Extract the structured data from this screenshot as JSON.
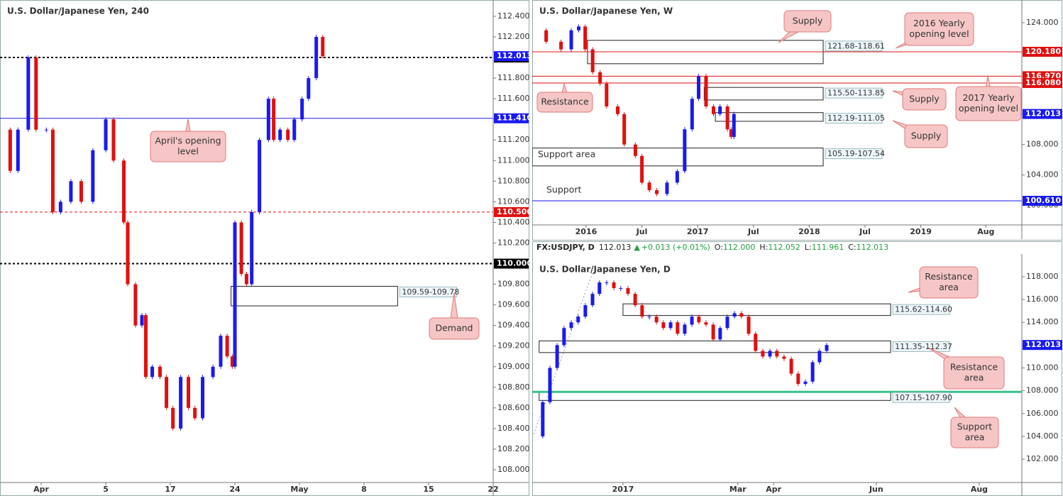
{
  "chart_data": [
    {
      "type": "candlestick",
      "title": "U.S. Dollar/Japanese Yen, 240",
      "x": [
        -2.9,
        -2.4,
        -1.8,
        -1.0,
        -0.4,
        0.4,
        0.9,
        1.5,
        2.3,
        3.1,
        4.0,
        5.0,
        5.6,
        6.4,
        6.7,
        7.3,
        7.8,
        8.1,
        8.6,
        9.2,
        9.7,
        10.2,
        10.8,
        11.4,
        11.9,
        12.5,
        13.3,
        13.9,
        14.4,
        14.8,
        15.0,
        15.5,
        15.9,
        16.3,
        16.9,
        17.6,
        18.0,
        18.5,
        19.1,
        19.6,
        20.2,
        20.7,
        21.3,
        21.8
      ],
      "values": [
        111.3,
        110.9,
        111.3,
        112.0,
        111.3,
        111.3,
        110.5,
        110.6,
        110.8,
        110.6,
        111.1,
        111.4,
        111.0,
        110.4,
        109.8,
        109.4,
        109.5,
        108.9,
        109.0,
        108.9,
        108.6,
        108.4,
        108.9,
        108.6,
        108.5,
        108.9,
        109.0,
        109.3,
        109.1,
        109.0,
        110.4,
        109.9,
        109.8,
        110.5,
        111.2,
        111.6,
        111.2,
        111.3,
        111.2,
        111.4,
        111.6,
        111.8,
        112.2,
        112.013
      ],
      "up_color": "#1a1aee",
      "down_color": "#e01010",
      "xlim": [
        -3.19,
        35
      ],
      "ylim": [
        107.876,
        112.558
      ],
      "xticks": [
        {
          "value": 0,
          "label": "Apr"
        },
        5,
        {
          "value": 10,
          "label": "17"
        },
        {
          "value": 15,
          "label": "24"
        },
        {
          "value": 20,
          "label": "May"
        },
        {
          "value": 25,
          "label": "8"
        },
        {
          "value": 30,
          "label": "15"
        },
        {
          "value": 35,
          "label": "22"
        }
      ],
      "yticks": [
        {
          "value": 108,
          "label": "108.000"
        },
        {
          "value": 108.2,
          "label": "108.200"
        },
        {
          "value": 108.4,
          "label": "108.400"
        },
        {
          "value": 108.6,
          "label": "108.600"
        },
        {
          "value": 108.8,
          "label": "108.800"
        },
        {
          "value": 109,
          "label": "109.000"
        },
        {
          "value": 109.2,
          "label": "109.200"
        },
        {
          "value": 109.4,
          "label": "109.400"
        },
        {
          "value": 109.6,
          "label": "109.600"
        },
        {
          "value": 109.8,
          "label": "109.800"
        },
        {
          "value": 110,
          "label": "110.000"
        },
        {
          "value": 110.2,
          "label": "110.200"
        },
        {
          "value": 110.4,
          "label": "110.400"
        },
        {
          "value": 110.6,
          "label": "110.600"
        },
        {
          "value": 110.8,
          "label": "110.800"
        },
        {
          "value": 111,
          "label": "111.000"
        },
        {
          "value": 111.2,
          "label": "111.200"
        },
        {
          "value": 111.4,
          "label": "111.400"
        },
        {
          "value": 111.6,
          "label": "111.600"
        },
        {
          "value": 111.8,
          "label": "111.800"
        },
        {
          "value": 112,
          "label": "112.000"
        },
        {
          "value": 112.2,
          "label": "112.200"
        },
        {
          "value": 112.4,
          "label": "112.400"
        }
      ],
      "levels": [
        {
          "value": 112.0,
          "label": "112.000",
          "color": "#000000",
          "style": "dotted"
        },
        {
          "value": 112.013,
          "label": "112.013",
          "color": "#1a1aee"
        },
        {
          "value": 111.41,
          "label": "111.410",
          "color": "#1a1aee",
          "style": "solid"
        },
        {
          "value": 110.5,
          "label": "110.500",
          "color": "#e01010",
          "style": "dashed"
        },
        {
          "value": 110.0,
          "label": "110.000",
          "color": "#000000",
          "style": "dotted"
        }
      ],
      "zones": [
        {
          "bounds": [
            109.59,
            109.78
          ],
          "label": "109.59-109.78",
          "x_range": [
            14.7,
            27.6
          ]
        }
      ],
      "annotations": [
        {
          "text": [
            "April's opening",
            "level"
          ]
        },
        {
          "text": [
            "Demand"
          ]
        }
      ]
    },
    {
      "type": "candlestick",
      "title": "U.S. Dollar/Japanese Yen, W",
      "x": [
        -5.4,
        -4.3,
        -2.7,
        -1.6,
        -0.8,
        -0.1,
        0.7,
        1.5,
        2.2,
        3.4,
        4.1,
        5.3,
        6.0,
        6.8,
        7.6,
        8.7,
        9.8,
        10.6,
        11.4,
        12.1,
        12.9,
        13.7,
        14.4,
        15.2,
        15.6,
        15.9
      ],
      "values": [
        123,
        121.5,
        120.5,
        123,
        123.5,
        120.5,
        117.5,
        116,
        113,
        112,
        108,
        106.5,
        103,
        102,
        101.5,
        103,
        104.5,
        110,
        114,
        117,
        113,
        112,
        113,
        110,
        109,
        112.013
      ],
      "up_color": "#1a1aee",
      "down_color": "#e01010",
      "xlim": [
        -5.8,
        46.87
      ],
      "ylim": [
        97.44,
        126.98
      ],
      "xticks": [
        {
          "value": 0,
          "label": "2016"
        },
        {
          "value": 6,
          "label": "Jul"
        },
        {
          "value": 12,
          "label": "2017"
        },
        {
          "value": 18,
          "label": "Jul"
        },
        {
          "value": 24,
          "label": "2018"
        },
        {
          "value": 30,
          "label": "Jul"
        },
        {
          "value": 36,
          "label": "2019"
        },
        {
          "value": 43,
          "label": "Aug"
        }
      ],
      "yticks": [
        {
          "value": 100,
          "label": "100.000"
        },
        {
          "value": 104,
          "label": "104.000"
        },
        {
          "value": 108,
          "label": "108.000"
        },
        {
          "value": 112,
          "label": "112.000"
        },
        {
          "value": 116,
          "label": "116.000"
        },
        {
          "value": 120,
          "label": "120.000"
        },
        {
          "value": 124,
          "label": "124.000"
        }
      ],
      "levels": [
        {
          "value": 120.18,
          "label": "120.180",
          "color": "#e01010",
          "style": "solid"
        },
        {
          "value": 116.97,
          "label": "116.970",
          "color": "#e01010",
          "style": "solid"
        },
        {
          "value": 116.08,
          "label": "116.080",
          "color": "#e01010",
          "style": "solid"
        },
        {
          "value": 112.013,
          "label": "112.013",
          "color": "#1a1aee"
        },
        {
          "value": 100.61,
          "label": "100.610",
          "color": "#1a1aee",
          "style": "solid"
        }
      ],
      "zones": [
        {
          "bounds": [
            121.68,
            118.61
          ],
          "label": "121.68-118.61",
          "x_range": [
            0.15,
            25.5
          ]
        },
        {
          "bounds": [
            115.5,
            113.85
          ],
          "label": "115.50-113.85",
          "x_range": [
            12.7,
            25.5
          ]
        },
        {
          "bounds": [
            112.19,
            111.05
          ],
          "label": "112.19-111.05",
          "x_range": [
            13.9,
            25.5
          ]
        },
        {
          "bounds": [
            105.19,
            107.54
          ],
          "label": "105.19-107.54",
          "x_range": [
            -5.8,
            25.5
          ]
        }
      ],
      "annotations": [
        {
          "text": [
            "Supply"
          ]
        },
        {
          "text": [
            "2016 Yearly",
            "opening level"
          ]
        },
        {
          "text": [
            "Resistance"
          ]
        },
        {
          "text": [
            "Supply"
          ]
        },
        {
          "text": [
            "2017 Yearly",
            "opening level"
          ]
        },
        {
          "text": [
            "Supply"
          ]
        },
        {
          "text": [
            "Support area"
          ]
        },
        {
          "text": [
            "Support"
          ]
        }
      ]
    },
    {
      "type": "candlestick",
      "title": "U.S. Dollar/Japanese Yen, D",
      "info": {
        "symbol": "FX:USDJPY, D",
        "last": "112.013",
        "arrow": "▲",
        "change": "+0.013 (+0.01%)",
        "open_label": "O:",
        "open": "112.000",
        "high_label": "H:",
        "high": "112.052",
        "low_label": "L:",
        "low": "111.961",
        "close_label": "C:",
        "close": "112.013"
      },
      "x": [
        -31.5,
        -29,
        -26.4,
        -23.8,
        -21.3,
        -18.7,
        -16.2,
        -13.6,
        -11,
        -8.5,
        -5.9,
        -3.3,
        -0.8,
        1.8,
        4.4,
        6.9,
        9.5,
        12.1,
        14.6,
        17.2,
        19.7,
        22.3,
        24.9,
        27.4,
        30,
        32.6,
        35.1,
        37.7,
        40.3,
        42.8,
        45.4,
        47.9,
        50.5,
        53.1,
        55.6,
        58.2,
        60.8,
        63.3,
        65.9,
        68.5,
        71,
        73.6
      ],
      "values": [
        104,
        107,
        110,
        112,
        113.5,
        114,
        114.5,
        115.5,
        116.5,
        117.5,
        117.5,
        117,
        117,
        116.5,
        115.5,
        114.5,
        114.5,
        114,
        113.5,
        114,
        113,
        113.8,
        114.5,
        114,
        113.8,
        112.5,
        113.5,
        114.5,
        114.8,
        114.5,
        113,
        111.5,
        111,
        111.5,
        111,
        110.8,
        109.5,
        108.6,
        108.8,
        110.5,
        111.5,
        112.013
      ],
      "up_color": "#1a1aee",
      "down_color": "#e01010",
      "xlim": [
        -32.8,
        144.1
      ],
      "ylim": [
        99.95,
        119.99
      ],
      "xticks": [
        {
          "value": 0,
          "label": "2017"
        },
        {
          "value": 41.5,
          "label": "Mar"
        },
        {
          "value": 54.4,
          "label": "Apr"
        },
        {
          "value": 91.5,
          "label": "Jun"
        },
        {
          "value": 128.7,
          "label": "Aug"
        }
      ],
      "yticks": [
        {
          "value": 102,
          "label": "102.000"
        },
        {
          "value": 104,
          "label": "104.000"
        },
        {
          "value": 106,
          "label": "106.000"
        },
        {
          "value": 108,
          "label": "108.000"
        },
        {
          "value": 110,
          "label": "110.000"
        },
        {
          "value": 112,
          "label": "112.000"
        },
        {
          "value": 114,
          "label": "114.000"
        },
        {
          "value": 116,
          "label": "116.000"
        },
        {
          "value": 118,
          "label": "118.000"
        }
      ],
      "levels": [
        {
          "value": 112.013,
          "label": "112.013",
          "color": "#1a1aee"
        },
        {
          "value": 107.9,
          "color": "#3cc08a",
          "style": "thick"
        }
      ],
      "zones": [
        {
          "bounds": [
            115.62,
            114.6
          ],
          "label": "115.62-114.60",
          "x_range": [
            0,
            96.7
          ]
        },
        {
          "bounds": [
            111.35,
            112.37
          ],
          "label": "111.35-112.37",
          "x_range": [
            -30.3,
            96.7
          ]
        },
        {
          "bounds": [
            107.15,
            107.9
          ],
          "label": "107.15-107.90",
          "x_range": [
            -30.3,
            96.7
          ]
        }
      ],
      "annotations": [
        {
          "text": [
            "Resistance",
            "area"
          ]
        },
        {
          "text": [
            "Resistance",
            "area"
          ]
        },
        {
          "text": [
            "Support",
            "area"
          ]
        }
      ]
    }
  ]
}
